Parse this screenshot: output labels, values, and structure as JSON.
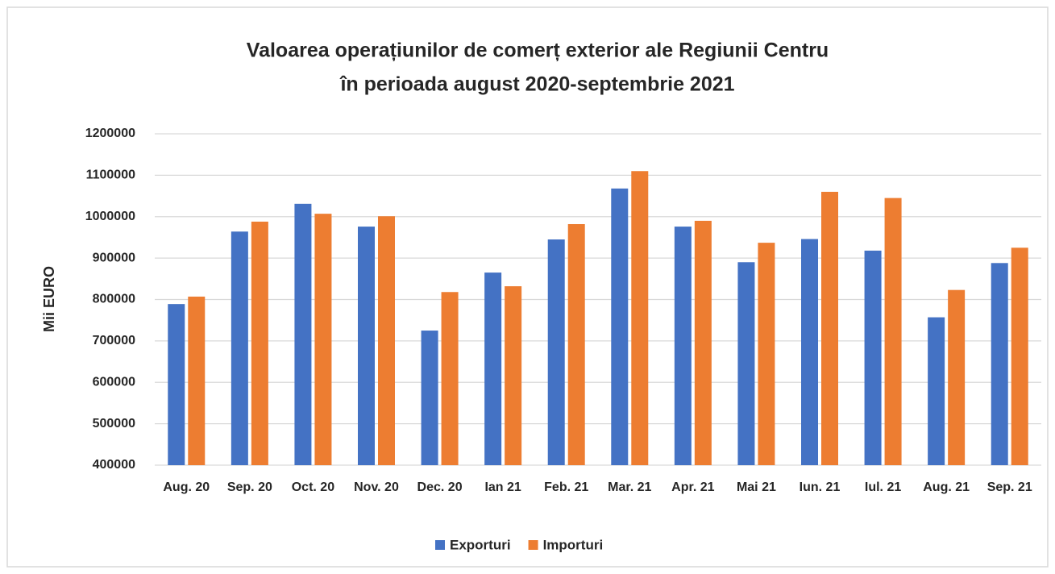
{
  "chart_data": {
    "type": "bar",
    "title": [
      "Valoarea operațiunilor de comerț exterior ale Regiunii Centru",
      "în perioada august 2020-septembrie 2021"
    ],
    "y_label": "Mii EURO",
    "categories": [
      "Aug. 20",
      "Sep. 20",
      "Oct. 20",
      "Nov. 20",
      "Dec. 20",
      "Ian 21",
      "Feb. 21",
      "Mar. 21",
      "Apr. 21",
      "Mai 21",
      "Iun. 21",
      "Iul. 21",
      "Aug. 21",
      "Sep. 21"
    ],
    "series": [
      {
        "name": "Exporturi",
        "color": "#4472c4",
        "values": [
          789000,
          964000,
          1031000,
          976000,
          725000,
          865000,
          945000,
          1068000,
          976000,
          890000,
          946000,
          918000,
          757000,
          888000
        ]
      },
      {
        "name": "Importuri",
        "color": "#ed7d31",
        "values": [
          807000,
          988000,
          1007000,
          1001000,
          818000,
          832000,
          982000,
          1110000,
          990000,
          937000,
          1060000,
          1045000,
          823000,
          925000
        ]
      }
    ],
    "ylim": [
      400000,
      1200000
    ],
    "yticks": [
      400000,
      500000,
      600000,
      700000,
      800000,
      900000,
      1000000,
      1100000,
      1200000
    ],
    "grid": true,
    "legend": "bottom"
  }
}
